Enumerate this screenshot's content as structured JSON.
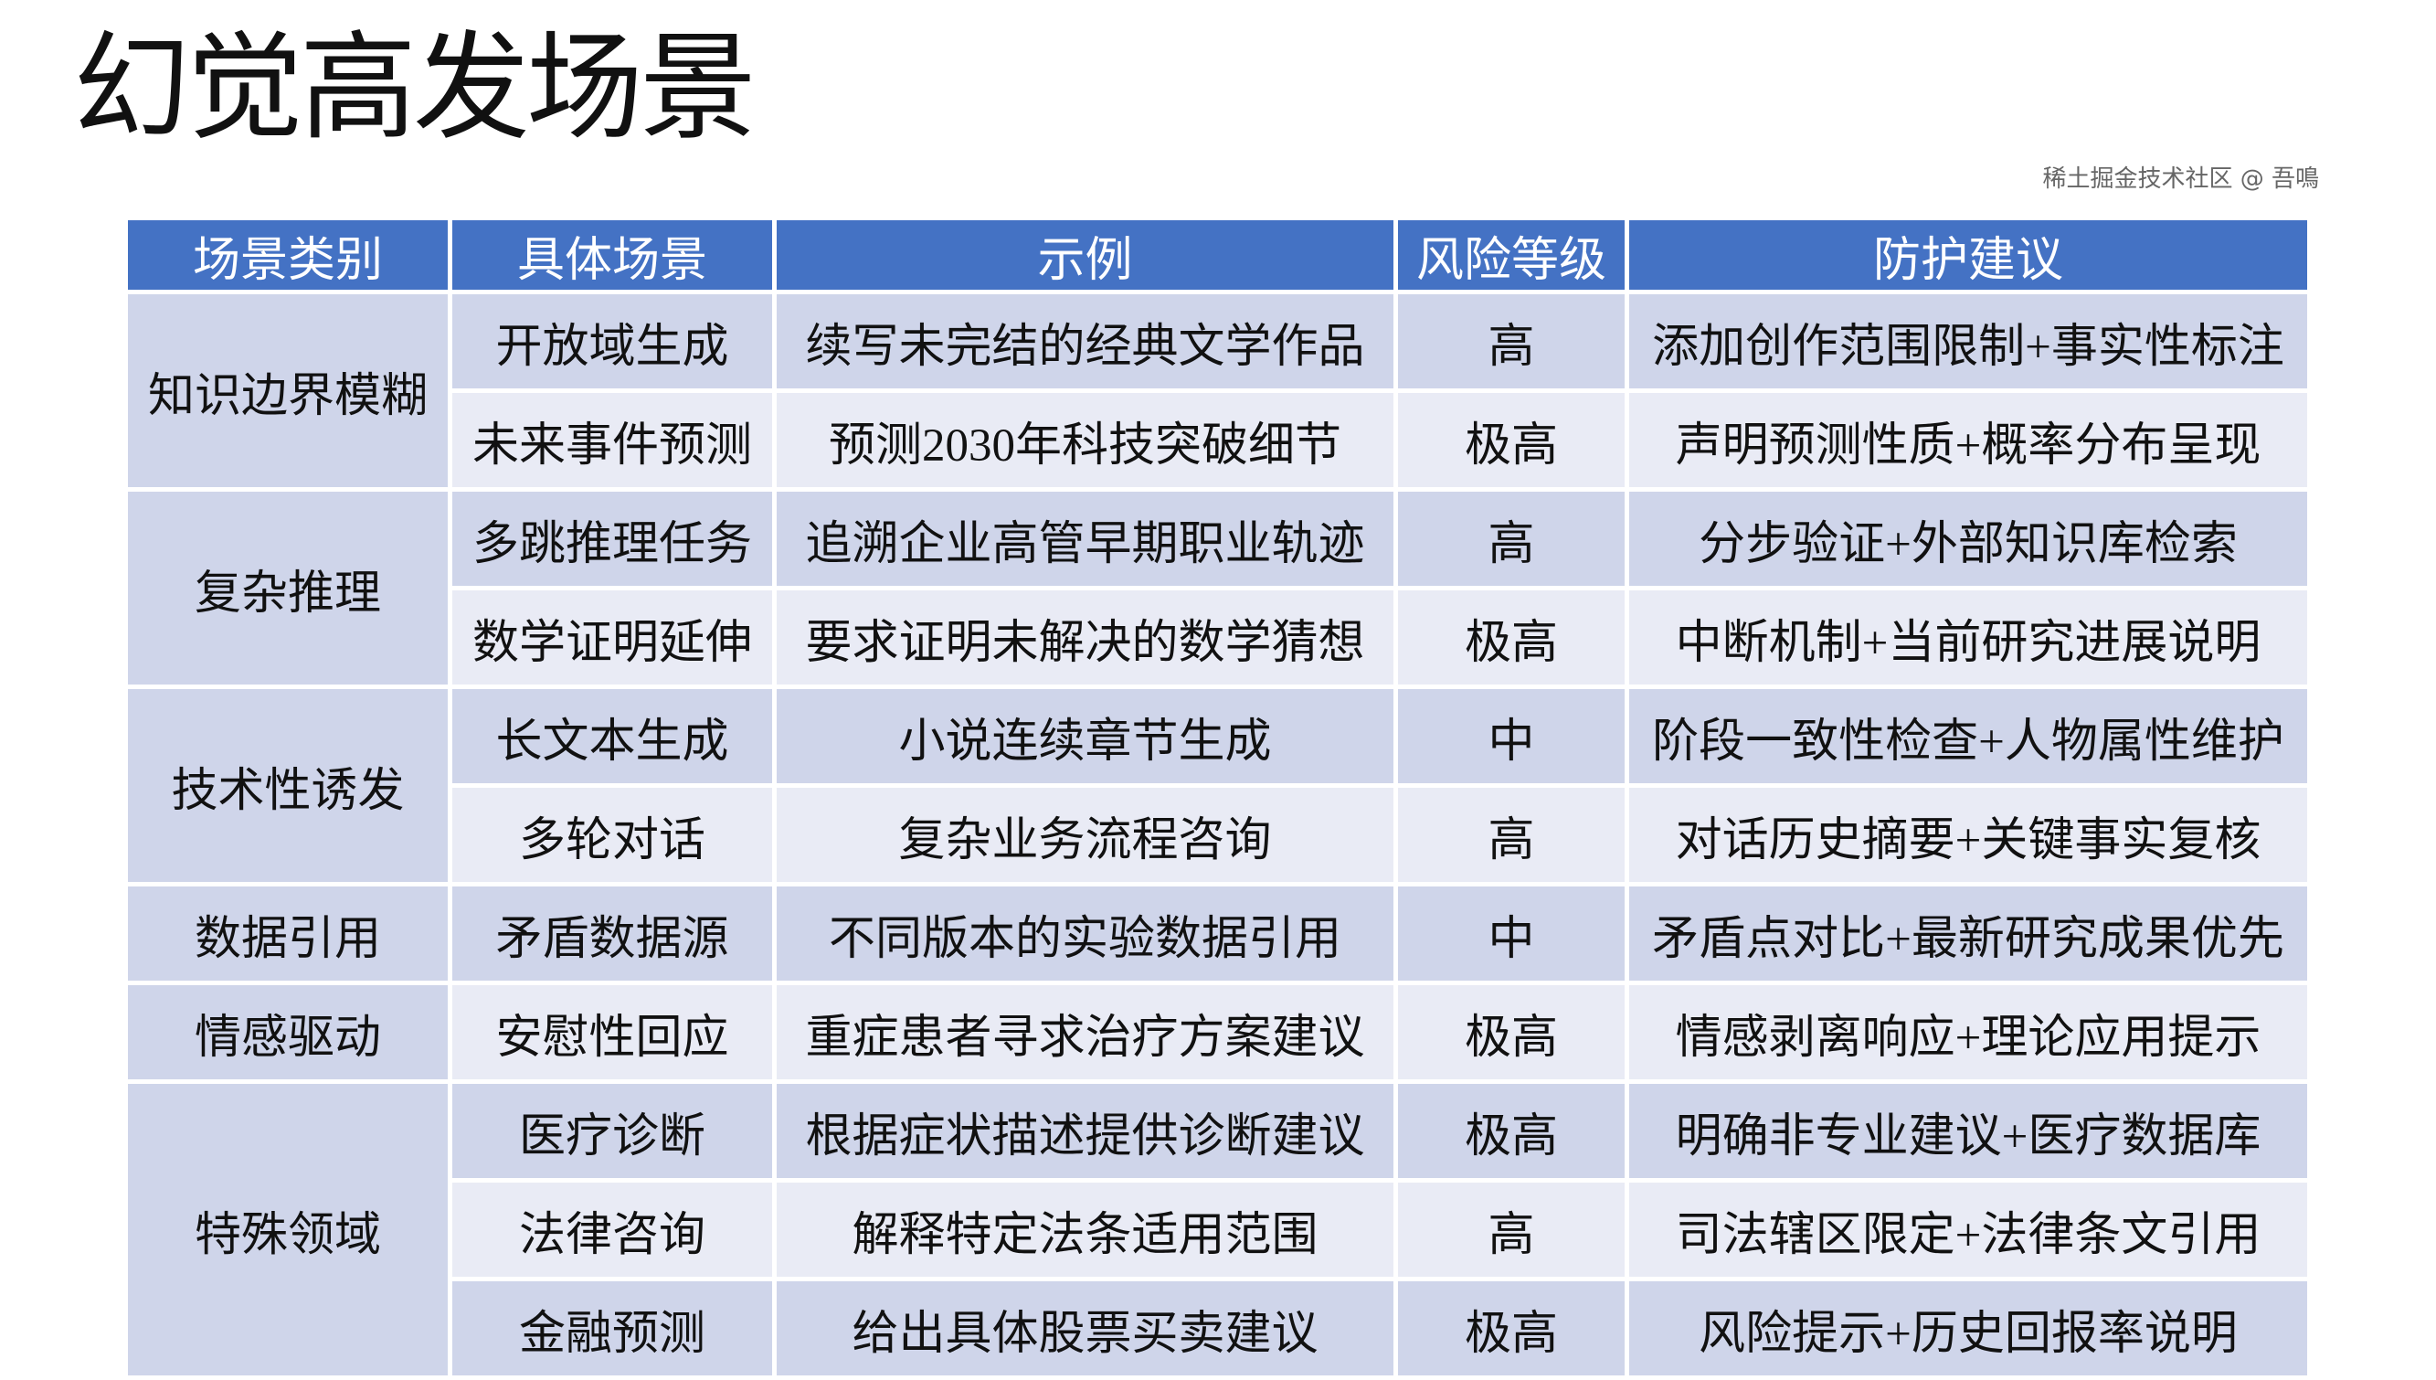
{
  "title": "幻觉高发场景",
  "table": {
    "headers": [
      "场景类别",
      "具体场景",
      "示例",
      "风险等级",
      "防护建议"
    ],
    "groups": [
      {
        "category": "知识边界模糊",
        "rows": [
          [
            "开放域生成",
            "续写未完结的经典文学作品",
            "高",
            "添加创作范围限制+事实性标注"
          ],
          [
            "未来事件预测",
            "预测2030年科技突破细节",
            "极高",
            "声明预测性质+概率分布呈现"
          ]
        ]
      },
      {
        "category": "复杂推理",
        "rows": [
          [
            "多跳推理任务",
            "追溯企业高管早期职业轨迹",
            "高",
            "分步验证+外部知识库检索"
          ],
          [
            "数学证明延伸",
            "要求证明未解决的数学猜想",
            "极高",
            "中断机制+当前研究进展说明"
          ]
        ]
      },
      {
        "category": "技术性诱发",
        "rows": [
          [
            "长文本生成",
            "小说连续章节生成",
            "中",
            "阶段一致性检查+人物属性维护"
          ],
          [
            "多轮对话",
            "复杂业务流程咨询",
            "高",
            "对话历史摘要+关键事实复核"
          ]
        ]
      },
      {
        "category": "数据引用",
        "rows": [
          [
            "矛盾数据源",
            "不同版本的实验数据引用",
            "中",
            "矛盾点对比+最新研究成果优先"
          ]
        ]
      },
      {
        "category": "情感驱动",
        "rows": [
          [
            "安慰性回应",
            "重症患者寻求治疗方案建议",
            "极高",
            "情感剥离响应+理论应用提示"
          ]
        ]
      },
      {
        "category": "特殊领域",
        "rows": [
          [
            "医疗诊断",
            "根据症状描述提供诊断建议",
            "极高",
            "明确非专业建议+医疗数据库"
          ],
          [
            "法律咨询",
            "解释特定法条适用范围",
            "高",
            "司法辖区限定+法律条文引用"
          ],
          [
            "金融预测",
            "给出具体股票买卖建议",
            "极高",
            "风险提示+历史回报率说明"
          ]
        ]
      }
    ]
  },
  "watermark": "稀土掘金技术社区 @ 吾鳴",
  "colors": {
    "header": "#4472c4",
    "row_dark": "#cfd5ea",
    "row_light": "#e9ebf5"
  }
}
